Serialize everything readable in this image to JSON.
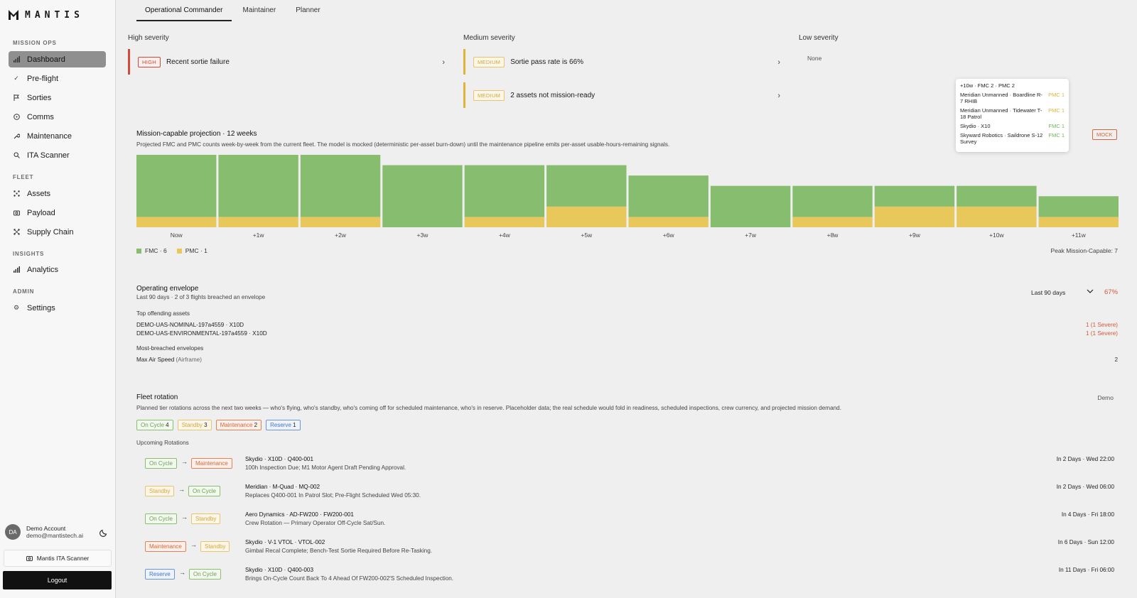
{
  "sidebar": {
    "brand": "MANTIS",
    "sections": [
      {
        "header": "MISSION OPS",
        "items": [
          {
            "label": "Dashboard",
            "icon": "bar-chart-icon",
            "active": true
          },
          {
            "label": "Pre-flight",
            "icon": "check-icon"
          },
          {
            "label": "Sorties",
            "icon": "flag-icon"
          },
          {
            "label": "Comms",
            "icon": "radio-icon"
          },
          {
            "label": "Maintenance",
            "icon": "wrench-icon"
          },
          {
            "label": "ITA Scanner",
            "icon": "search-icon"
          }
        ]
      },
      {
        "header": "FLEET",
        "items": [
          {
            "label": "Assets",
            "icon": "drone-icon"
          },
          {
            "label": "Payload",
            "icon": "camera-icon"
          },
          {
            "label": "Supply Chain",
            "icon": "network-icon"
          }
        ]
      },
      {
        "header": "INSIGHTS",
        "items": [
          {
            "label": "Analytics",
            "icon": "bar-chart-icon"
          }
        ]
      },
      {
        "header": "ADMIN",
        "items": [
          {
            "label": "Settings",
            "icon": "gear-icon"
          }
        ]
      }
    ],
    "account": {
      "initials": "DA",
      "name": "Demo Account",
      "email": "demo@mantistech.ai"
    },
    "ita_button": "Mantis ITA Scanner",
    "logout": "Logout"
  },
  "tabs": [
    "Operational Commander",
    "Maintainer",
    "Planner"
  ],
  "severity": {
    "high": {
      "title": "High severity",
      "alerts": [
        {
          "badge": "HIGH",
          "text": "Recent sortie failure"
        }
      ]
    },
    "medium": {
      "title": "Medium severity",
      "alerts": [
        {
          "badge": "MEDIUM",
          "text": "Sortie pass rate is 66%"
        },
        {
          "badge": "MEDIUM",
          "text": "2 assets not mission-ready"
        }
      ]
    },
    "low": {
      "title": "Low severity",
      "empty": "None"
    }
  },
  "projection": {
    "title": "Mission-capable projection · 12 weeks",
    "subtitle": "Projected FMC and PMC counts week-by-week from the current fleet. The model is mocked (deterministic per-asset burn-down) until the maintenance pipeline emits per-asset usable-hours-remaining signals.",
    "mock_badge": "MOCK",
    "legend": {
      "fmc": "FMC · 6",
      "pmc": "PMC · 1"
    },
    "peak": "Peak Mission-Capable: 7",
    "tooltip": {
      "title": "+10w · FMC 2 · PMC 2",
      "rows": [
        {
          "name": "Meridian Unmanned · Boardline R-7 RHIB",
          "status": "PMC 1",
          "color": "#e0b43a"
        },
        {
          "name": "Meridian Unmanned · Tidewater T-18 Patrol",
          "status": "PMC 1",
          "color": "#e0b43a"
        },
        {
          "name": "Skydio · X10",
          "status": "FMC 1",
          "color": "#6fb356"
        },
        {
          "name": "Skyward Robotics · Saildrone S-12 Survey",
          "status": "FMC 1",
          "color": "#6fb356"
        }
      ]
    }
  },
  "chart_data": {
    "type": "bar",
    "stacked": true,
    "categories": [
      "Now",
      "+1w",
      "+2w",
      "+3w",
      "+4w",
      "+5w",
      "+6w",
      "+7w",
      "+8w",
      "+9w",
      "+10w",
      "+11w"
    ],
    "series": [
      {
        "name": "FMC",
        "color": "#86bd6e",
        "values": [
          6,
          6,
          6,
          6,
          5,
          4,
          4,
          4,
          3,
          2,
          2,
          2
        ]
      },
      {
        "name": "PMC",
        "color": "#e8c75b",
        "values": [
          1,
          1,
          1,
          0,
          1,
          2,
          1,
          0,
          1,
          2,
          2,
          1
        ]
      }
    ],
    "ylim": [
      0,
      7
    ]
  },
  "envelope": {
    "title": "Operating envelope",
    "subtitle": "Last 90 days · 2 of 3 flights breached an envelope",
    "range": "Last 90 days",
    "percent": "67%",
    "top_assets_label": "Top offending assets",
    "top_assets": [
      {
        "name": "DEMO-UAS-NOMINAL-197a4559 · X10D",
        "value": "1 (1 Severe)"
      },
      {
        "name": "DEMO-UAS-ENVIRONMENTAL-197a4559 · X10D",
        "value": "1 (1 Severe)"
      }
    ],
    "most_breached_label": "Most-breached envelopes",
    "most_breached": [
      {
        "name": "Max Air Speed",
        "category": "(Airframe)",
        "value": "2"
      }
    ]
  },
  "rotation": {
    "title": "Fleet rotation",
    "subtitle": "Planned tier rotations across the next two weeks — who's flying, who's standby, who's coming off for scheduled maintenance, who's in reserve. Placeholder data; the real schedule would fold in readiness, scheduled inspections, crew currency, and projected mission demand.",
    "demo": "Demo",
    "chips": [
      {
        "label": "On Cycle",
        "count": "4",
        "cls": "c-on"
      },
      {
        "label": "Standby",
        "count": "3",
        "cls": "c-sb"
      },
      {
        "label": "Maintenance",
        "count": "2",
        "cls": "c-mt"
      },
      {
        "label": "Reserve",
        "count": "1",
        "cls": "c-rs"
      }
    ],
    "upcoming_label": "Upcoming Rotations",
    "items": [
      {
        "from": "On Cycle",
        "from_cls": "c-on",
        "to": "Maintenance",
        "to_cls": "c-mt",
        "asset": "Skydio · X10D · Q400-001",
        "note": "100h Inspection Due; M1 Motor Agent Draft Pending Approval.",
        "when": "In 2 Days · Wed 22:00"
      },
      {
        "from": "Standby",
        "from_cls": "c-sb",
        "to": "On Cycle",
        "to_cls": "c-on",
        "asset": "Meridian · M-Quad · MQ-002",
        "note": "Replaces Q400-001 In Patrol Slot; Pre-Flight Scheduled Wed 05:30.",
        "when": "In 2 Days · Wed 06:00"
      },
      {
        "from": "On Cycle",
        "from_cls": "c-on",
        "to": "Standby",
        "to_cls": "c-sb",
        "asset": "Aero Dynamics · AD-FW200 · FW200-001",
        "note": "Crew Rotation — Primary Operator Off-Cycle Sat/Sun.",
        "when": "In 4 Days · Fri 18:00"
      },
      {
        "from": "Maintenance",
        "from_cls": "c-mt",
        "to": "Standby",
        "to_cls": "c-sb",
        "asset": "Skydio · V-1 VTOL · VTOL-002",
        "note": "Gimbal Recal Complete; Bench-Test Sortie Required Before Re-Tasking.",
        "when": "In 6 Days · Sun 12:00"
      },
      {
        "from": "Reserve",
        "from_cls": "c-rs",
        "to": "On Cycle",
        "to_cls": "c-on",
        "asset": "Skydio · X10D · Q400-003",
        "note": "Brings On-Cycle Count Back To 4 Ahead Of FW200-002'S Scheduled Inspection.",
        "when": "In 11 Days · Fri 06:00"
      }
    ]
  }
}
